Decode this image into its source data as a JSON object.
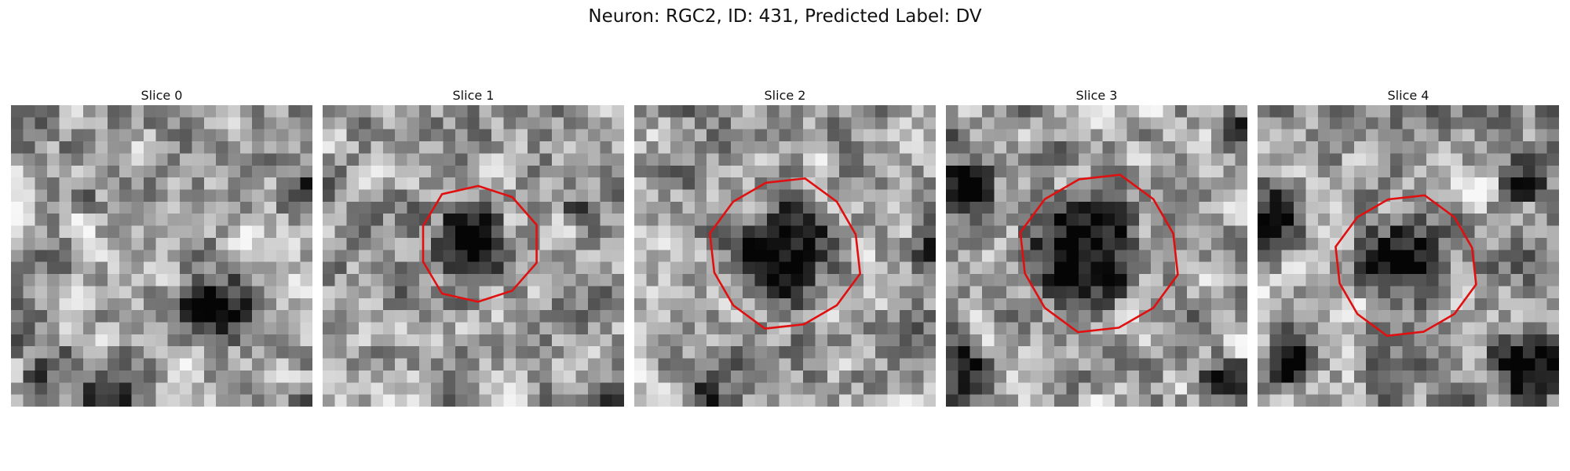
{
  "figure": {
    "title": "Neuron: RGC2, ID: 431, Predicted Label: DV",
    "contour_color": "#e01010"
  },
  "panels": [
    {
      "title": "Slice 0",
      "has_contour": false
    },
    {
      "title": "Slice 1",
      "has_contour": true
    },
    {
      "title": "Slice 2",
      "has_contour": true
    },
    {
      "title": "Slice 3",
      "has_contour": true
    },
    {
      "title": "Slice 4",
      "has_contour": true
    }
  ]
}
